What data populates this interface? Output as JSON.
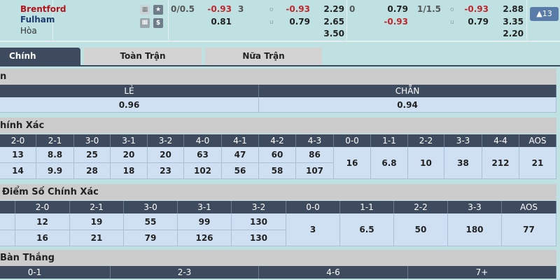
{
  "match": {
    "home": "Brentford",
    "away": "Fulham",
    "draw": "Hòa",
    "icons": [
      "scoreboard-icon",
      "star-icon",
      "stats-icon",
      "dollar-icon"
    ],
    "ft_handicap": {
      "line": "0/0.5",
      "home": "-0.93",
      "away": "0.81"
    },
    "ft_ou": {
      "line": "3",
      "over_label": "o",
      "under_label": "u",
      "over": "-0.93",
      "under": "0.79"
    },
    "ft_1x2": {
      "home": "2.29",
      "away": "2.65",
      "draw": "3.50"
    },
    "ht_handicap": {
      "line": "0",
      "home": "0.79",
      "away": "-0.93"
    },
    "ht_ou": {
      "line": "1/1.5",
      "over_label": "o",
      "under_label": "u",
      "over": "-0.93",
      "under": "0.79"
    },
    "ht_1x2": {
      "home": "2.88",
      "away": "3.35",
      "draw": "2.20"
    },
    "more_button": "▲13"
  },
  "tabs": [
    "Chính",
    "Toàn Trận",
    "Nữa Trận"
  ],
  "odd_even": {
    "title": "n",
    "headers": [
      "LẺ",
      "CHẴN"
    ],
    "values": [
      "0.96",
      "0.94"
    ]
  },
  "correct_score_ft": {
    "title": "hính Xác",
    "headers": [
      "2-0",
      "2-1",
      "3-0",
      "3-1",
      "3-2",
      "4-0",
      "4-1",
      "4-2",
      "4-3",
      "0-0",
      "1-1",
      "2-2",
      "3-3",
      "4-4",
      "AOS"
    ],
    "home": [
      "13",
      "8.8",
      "25",
      "20",
      "20",
      "63",
      "47",
      "60",
      "86"
    ],
    "away": [
      "14",
      "9.9",
      "28",
      "18",
      "23",
      "102",
      "56",
      "58",
      "107"
    ],
    "draws": [
      "16",
      "6.8",
      "10",
      "38",
      "212",
      "21"
    ]
  },
  "correct_score_ht": {
    "title": "Điểm Số Chính Xác",
    "headers": [
      "",
      "2-0",
      "2-1",
      "3-0",
      "3-1",
      "3-2",
      "0-0",
      "1-1",
      "2-2",
      "3-3",
      "AOS"
    ],
    "home": [
      "12",
      "19",
      "55",
      "99",
      "130"
    ],
    "away": [
      "16",
      "21",
      "79",
      "126",
      "130"
    ],
    "draws": [
      "3",
      "6.5",
      "50",
      "180",
      "77"
    ]
  },
  "total_goals": {
    "title": "Bàn Thắng",
    "headers": [
      "0-1",
      "2-3",
      "4-6",
      "7+"
    ]
  },
  "colors": {
    "red": "#c0272d",
    "header": "#3e4a5e",
    "cell": "#cfe0f3",
    "section": "#cccccc"
  }
}
